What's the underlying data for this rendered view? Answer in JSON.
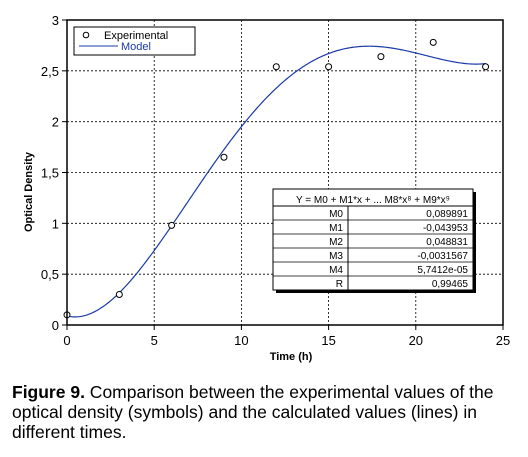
{
  "chart_data": {
    "type": "scatter",
    "xlabel": "Time (h)",
    "ylabel": "Optical Density",
    "xlim": [
      0,
      25
    ],
    "ylim": [
      0,
      3
    ],
    "x_ticks": [
      "0",
      "5",
      "10",
      "15",
      "20",
      "25"
    ],
    "y_ticks": [
      "0",
      "0,5",
      "1",
      "1,5",
      "2",
      "2,5",
      "3"
    ],
    "grid": true,
    "legend_position": "top-left",
    "series": [
      {
        "name": "Experimental",
        "kind": "markers",
        "color": "#000000",
        "x": [
          0,
          3,
          6,
          9,
          12,
          15,
          18,
          21,
          24
        ],
        "y": [
          0.1,
          0.3,
          0.98,
          1.65,
          2.54,
          2.54,
          2.64,
          2.78,
          2.54
        ]
      },
      {
        "name": "Model",
        "kind": "line",
        "color": "#1a3aa8",
        "coefficients": [
          0.089891,
          -0.043953,
          0.048831,
          -0.0031567,
          5.7412e-05
        ]
      }
    ],
    "fit_table": {
      "equation": "Y = M0 + M1*x + ... M8*x⁸ + M9*x⁹",
      "rows": [
        {
          "param": "M0",
          "value": "0,089891"
        },
        {
          "param": "M1",
          "value": "-0,043953"
        },
        {
          "param": "M2",
          "value": "0,048831"
        },
        {
          "param": "M3",
          "value": "-0,0031567"
        },
        {
          "param": "M4",
          "value": "5,7412e-05"
        },
        {
          "param": "R",
          "value": "0,99465"
        }
      ]
    }
  },
  "caption": {
    "label": "Figure 9.",
    "text": " Comparison between the experimental values of the optical density (symbols) and the calculated values (lines) in different times."
  }
}
